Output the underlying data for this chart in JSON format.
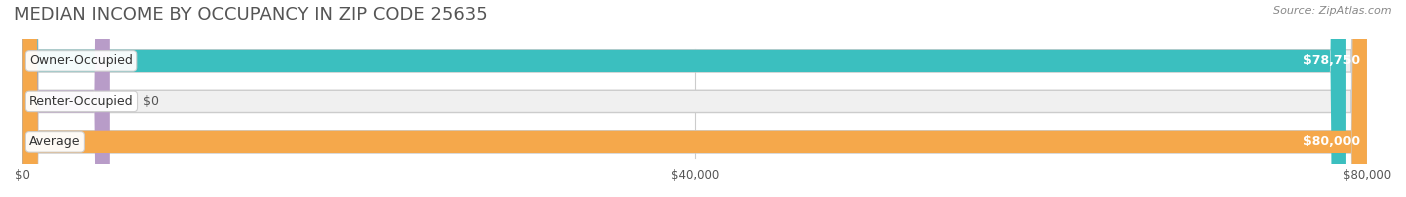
{
  "title": "MEDIAN INCOME BY OCCUPANCY IN ZIP CODE 25635",
  "source": "Source: ZipAtlas.com",
  "categories": [
    "Owner-Occupied",
    "Renter-Occupied",
    "Average"
  ],
  "values": [
    78750,
    0,
    80000
  ],
  "bar_colors": [
    "#3bbfbf",
    "#b89cc8",
    "#f5a84b"
  ],
  "bar_bg_color": "#f0f0f0",
  "value_labels": [
    "$78,750",
    "$0",
    "$80,000"
  ],
  "xlim": [
    0,
    80000
  ],
  "xticks": [
    0,
    40000,
    80000
  ],
  "xtick_labels": [
    "$0",
    "$40,000",
    "$80,000"
  ],
  "title_fontsize": 13,
  "label_fontsize": 9,
  "bar_height": 0.55,
  "background_color": "#ffffff"
}
